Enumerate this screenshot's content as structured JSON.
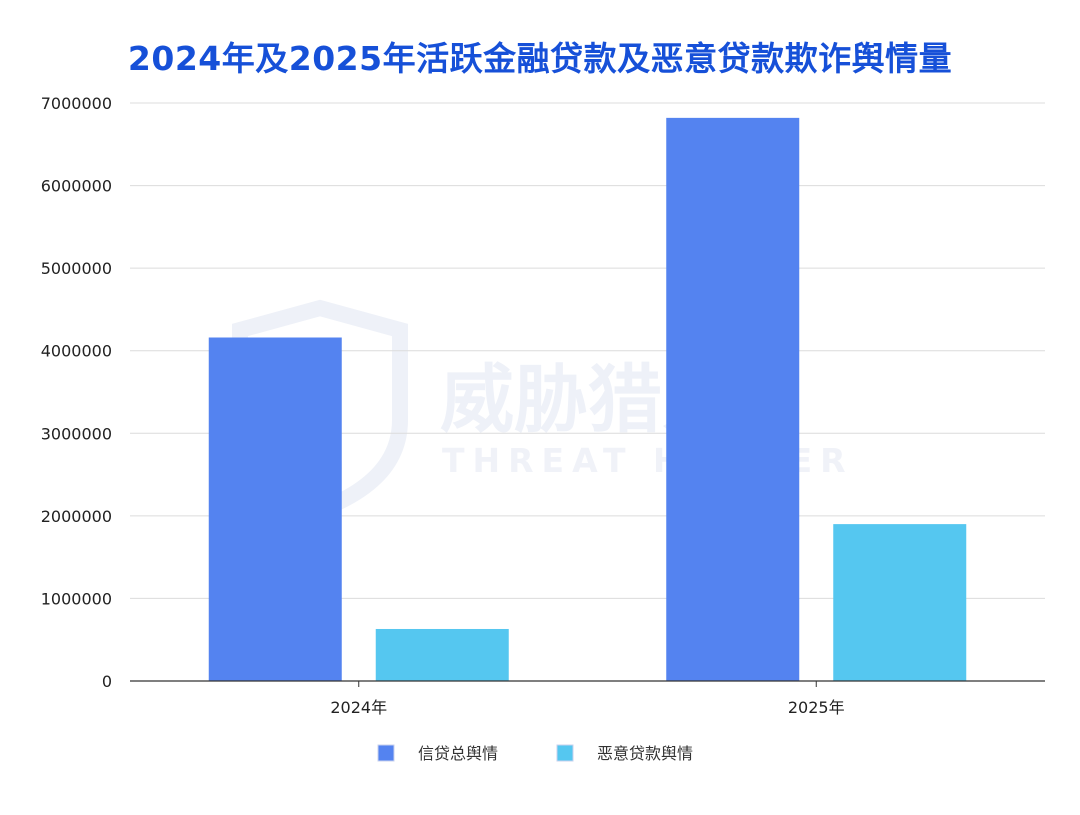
{
  "chart_data": {
    "type": "bar",
    "title": "2024年及2025年活跃金融贷款及恶意贷款欺诈舆情量",
    "categories": [
      "2024年",
      "2025年"
    ],
    "series": [
      {
        "name": "信贷总舆情",
        "values": [
          4160000,
          6820000
        ],
        "color": "#5483f0"
      },
      {
        "name": "恶意贷款舆情",
        "values": [
          630000,
          1900000
        ],
        "color": "#55c7f0"
      }
    ],
    "ylim": [
      0,
      7000000
    ],
    "yticks": [
      "0",
      "1000000",
      "2000000",
      "3000000",
      "4000000",
      "5000000",
      "6000000",
      "7000000"
    ],
    "grid": true,
    "legend_position": "bottom"
  },
  "watermark": {
    "cn": "威胁猎人",
    "en": "THREAT HUNTER"
  }
}
